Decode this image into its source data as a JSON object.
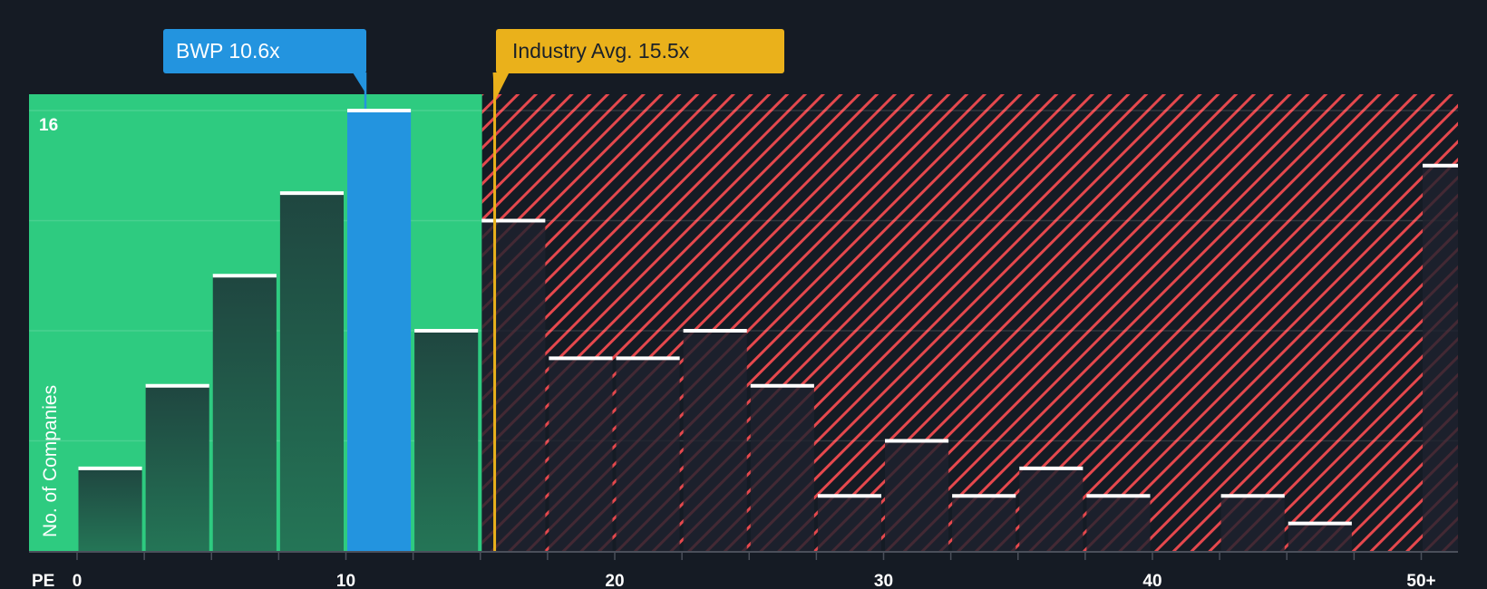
{
  "company_label": "BWP 10.6x",
  "industry_label": "Industry Avg. 15.5x",
  "colors": {
    "background": "#151b24",
    "undervalued_zone": "#2ecb80",
    "overvalued_hatch": "#e5484d",
    "company_bar": "#2394df",
    "industry_line": "#eab11b",
    "bar_cap": "#ffffff"
  },
  "chart_data": {
    "type": "bar",
    "title": "",
    "xlabel": "PE",
    "ylabel": "No. of Companies",
    "x_tick_labels": [
      "0",
      "10",
      "20",
      "30",
      "40",
      "50+"
    ],
    "y_tick_labels": [
      "16"
    ],
    "ylim": [
      0,
      16.5
    ],
    "bin_width": 2.5,
    "categories": [
      "0-2.5",
      "2.5-5",
      "5-7.5",
      "7.5-10",
      "10-12.5",
      "12.5-15",
      "15-17.5",
      "17.5-20",
      "20-22.5",
      "22.5-25",
      "25-27.5",
      "27.5-30",
      "30-32.5",
      "32.5-35",
      "35-37.5",
      "37.5-40",
      "40-42.5",
      "42.5-45",
      "45-47.5",
      "47.5-50",
      "50+"
    ],
    "values": [
      3,
      6,
      10,
      13,
      16,
      8,
      12,
      7,
      7,
      8,
      6,
      2,
      4,
      2,
      3,
      2,
      0,
      2,
      1,
      0,
      14
    ],
    "highlight_index": 4,
    "company": {
      "name": "BWP",
      "pe": 10.6
    },
    "industry_avg": 15.5,
    "grid": true,
    "legend": "none"
  }
}
